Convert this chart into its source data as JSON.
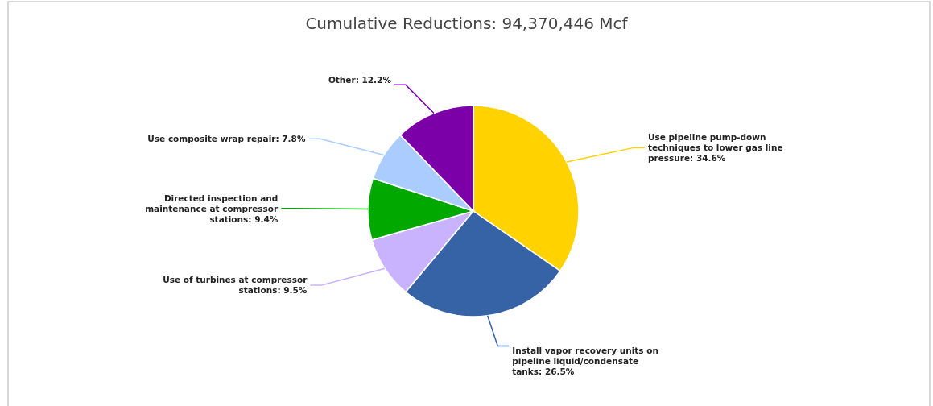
{
  "chart_data": {
    "type": "pie",
    "title": "Cumulative Reductions: 94,370,446 Mcf",
    "categories": [
      "Use pipeline pump-down techniques to lower gas line pressure",
      "Install vapor recovery units on pipeline liquid/condensate tanks",
      "Use of turbines at compressor stations",
      "Directed inspection and maintenance at compressor stations",
      "Use composite wrap repair",
      "Other"
    ],
    "values": [
      34.6,
      26.5,
      9.5,
      9.4,
      7.8,
      12.2
    ],
    "value_labels": [
      "34.6%",
      "26.5%",
      "9.5%",
      "9.4%",
      "7.8%",
      "12.2%"
    ],
    "colors": [
      "#ffd200",
      "#3563a6",
      "#c9b3ff",
      "#00a800",
      "#aaccff",
      "#7b00a8"
    ]
  }
}
